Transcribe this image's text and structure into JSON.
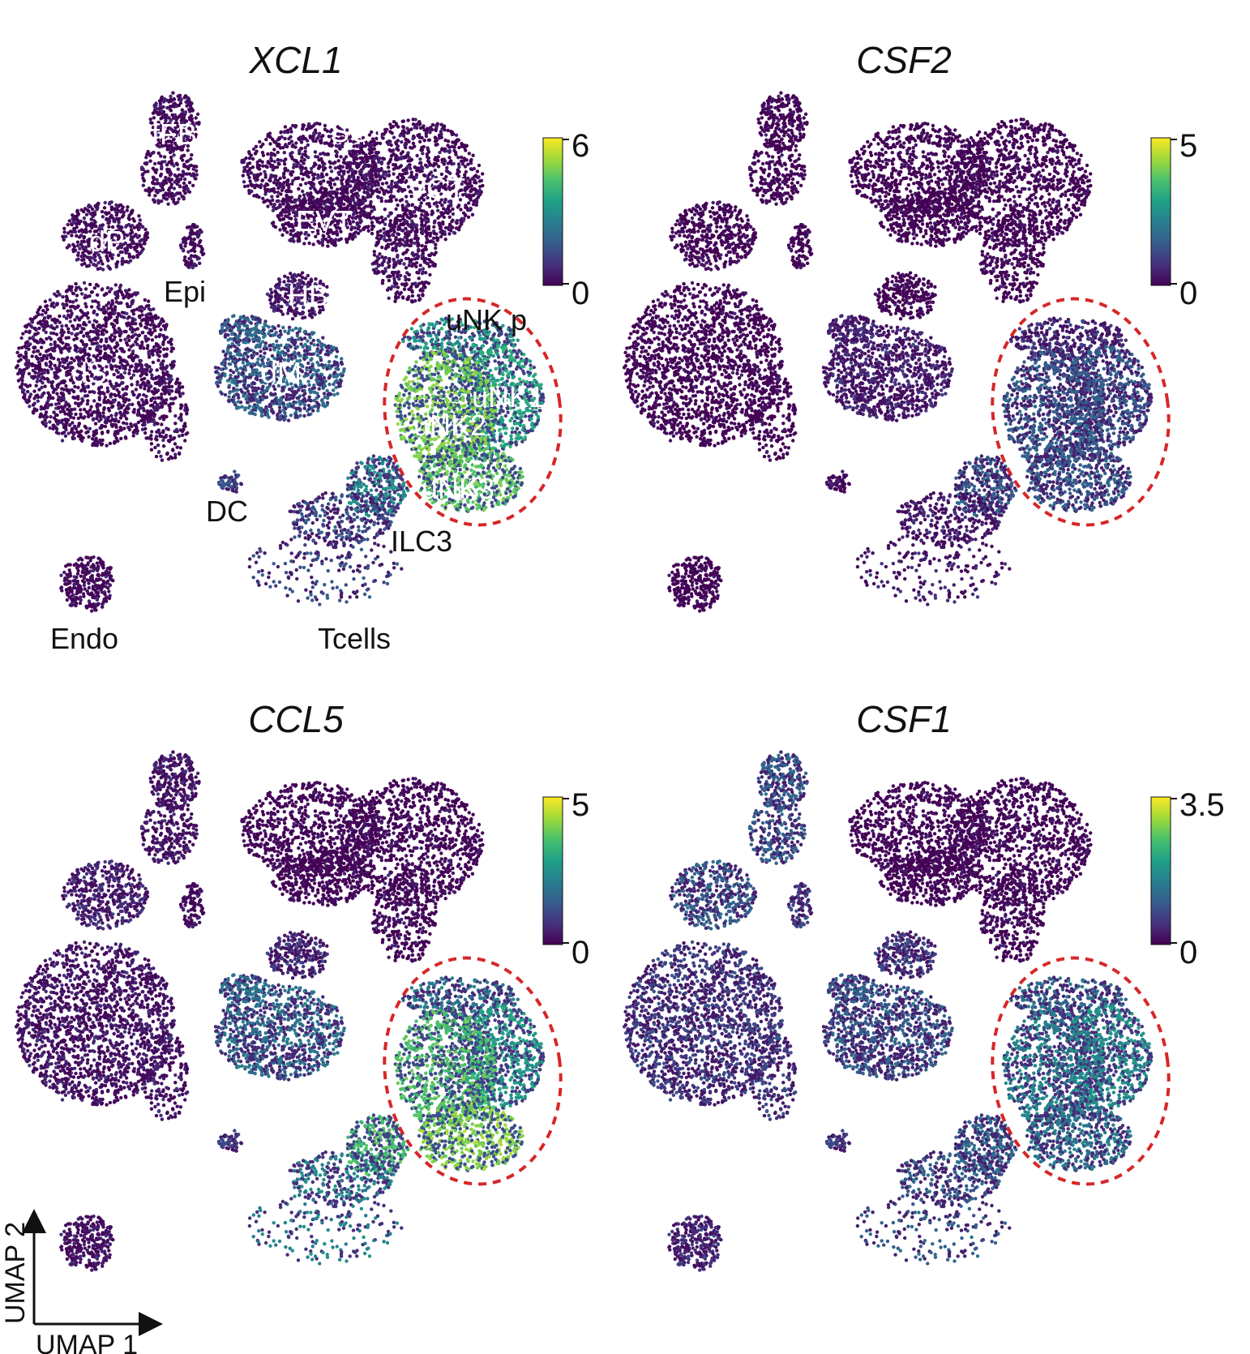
{
  "colors": {
    "viridis": [
      "#440154",
      "#46327e",
      "#365c8d",
      "#277f8e",
      "#1fa187",
      "#4ac16d",
      "#a0da39",
      "#fde725"
    ],
    "highlight_outline": "#d62728"
  },
  "chart_data": [
    {
      "type": "scatter",
      "title": "XCL1",
      "colorbar": {
        "min": 0,
        "max": 6,
        "min_label": "0",
        "max_label": "6"
      },
      "cluster_expression": {
        "fFB": 0.05,
        "dP": 0.05,
        "Epi": 0.05,
        "SCT": 0.05,
        "VCT": 0.05,
        "EVT": 0.05,
        "HB": 0.1,
        "dS": 0.05,
        "dM": 0.35,
        "DC": 0.25,
        "Endo": 0.05,
        "Tcells": 0.25,
        "ILC3": 0.5,
        "uNK p": 0.55,
        "uNK1": 0.6,
        "uNK2": 0.8,
        "uNK3": 0.75
      },
      "labels": [
        {
          "text": "fFB",
          "style": "white"
        },
        {
          "text": "SCT",
          "style": "white"
        },
        {
          "text": "VCT",
          "style": "white"
        },
        {
          "text": "EVT",
          "style": "white"
        },
        {
          "text": "dP",
          "style": "white"
        },
        {
          "text": "Epi",
          "style": "dark"
        },
        {
          "text": "HB",
          "style": "white"
        },
        {
          "text": "uNK p",
          "style": "dark"
        },
        {
          "text": "dS",
          "style": "white"
        },
        {
          "text": "dM",
          "style": "white"
        },
        {
          "text": "uNK1",
          "style": "white"
        },
        {
          "text": "uNK2",
          "style": "white"
        },
        {
          "text": "uNK3",
          "style": "white"
        },
        {
          "text": "DC",
          "style": "dark"
        },
        {
          "text": "ILC3",
          "style": "dark"
        },
        {
          "text": "Endo",
          "style": "dark"
        },
        {
          "text": "Tcells",
          "style": "dark"
        }
      ]
    },
    {
      "type": "scatter",
      "title": "CSF2",
      "colorbar": {
        "min": 0,
        "max": 5,
        "min_label": "0",
        "max_label": "5"
      },
      "cluster_expression": {
        "fFB": 0.02,
        "dP": 0.02,
        "Epi": 0.02,
        "SCT": 0.02,
        "VCT": 0.02,
        "EVT": 0.02,
        "HB": 0.02,
        "dS": 0.02,
        "dM": 0.12,
        "DC": 0.05,
        "Endo": 0.02,
        "Tcells": 0.1,
        "ILC3": 0.3,
        "uNK p": 0.15,
        "uNK1": 0.28,
        "uNK2": 0.3,
        "uNK3": 0.3
      }
    },
    {
      "type": "scatter",
      "title": "CCL5",
      "colorbar": {
        "min": 0,
        "max": 5,
        "min_label": "0",
        "max_label": "5"
      },
      "cluster_expression": {
        "fFB": 0.08,
        "dP": 0.12,
        "Epi": 0.05,
        "SCT": 0.03,
        "VCT": 0.03,
        "EVT": 0.03,
        "HB": 0.15,
        "dS": 0.08,
        "dM": 0.38,
        "DC": 0.2,
        "Endo": 0.08,
        "Tcells": 0.45,
        "ILC3": 0.7,
        "uNK p": 0.4,
        "uNK1": 0.55,
        "uNK2": 0.72,
        "uNK3": 0.82
      }
    },
    {
      "type": "scatter",
      "title": "CSF1",
      "colorbar": {
        "min": 0,
        "max": 3.5,
        "min_label": "0",
        "max_label": "3.5"
      },
      "cluster_expression": {
        "fFB": 0.3,
        "dP": 0.3,
        "Epi": 0.2,
        "SCT": 0.03,
        "VCT": 0.03,
        "EVT": 0.03,
        "HB": 0.2,
        "dS": 0.2,
        "dM": 0.3,
        "DC": 0.2,
        "Endo": 0.15,
        "Tcells": 0.3,
        "ILC3": 0.35,
        "uNK p": 0.35,
        "uNK1": 0.5,
        "uNK2": 0.45,
        "uNK3": 0.4
      }
    }
  ],
  "axes": {
    "x_label": "UMAP 1",
    "y_label": "UMAP 2"
  }
}
